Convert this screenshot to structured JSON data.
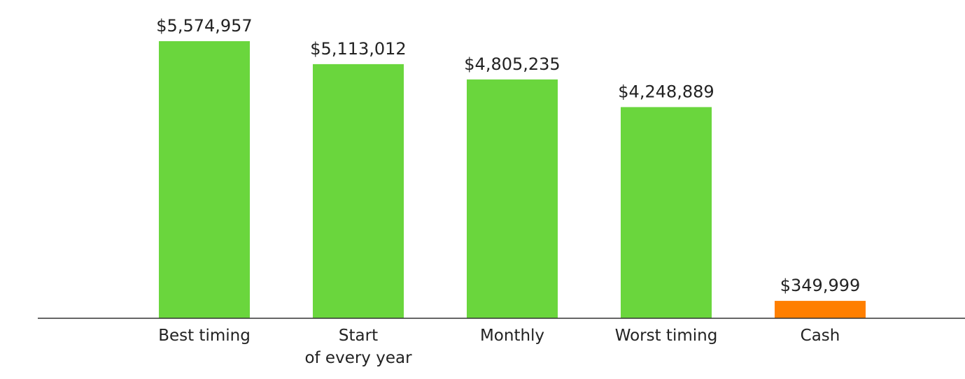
{
  "chart_data": {
    "type": "bar",
    "title": "",
    "xlabel": "",
    "ylabel": "",
    "categories": [
      "Best timing",
      "Start\nof every year",
      "Monthly",
      "Worst timing",
      "Cash"
    ],
    "values": [
      5574957,
      5113012,
      4805235,
      4248889,
      349999
    ],
    "value_labels": [
      "$5,574,957",
      "$5,113,012",
      "$4,805,235",
      "$4,248,889",
      "$349,999"
    ],
    "bar_colors": [
      "#6AD63D",
      "#6AD63D",
      "#6AD63D",
      "#6AD63D",
      "#FF7F00"
    ],
    "ylim": [
      0,
      5574957
    ],
    "grid": false,
    "legend": "none"
  }
}
